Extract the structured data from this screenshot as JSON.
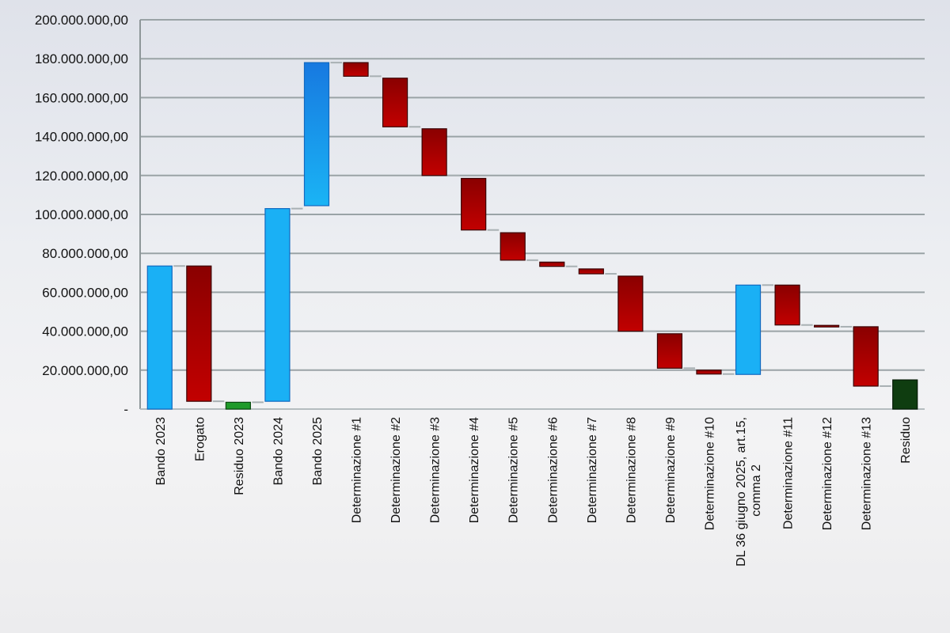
{
  "chart_data": {
    "type": "waterfall",
    "title": "",
    "xlabel": "",
    "ylabel": "",
    "ylim": [
      0,
      200000000
    ],
    "grid": true,
    "legend": "none",
    "y_ticks": [
      {
        "value": 0,
        "label": "-"
      },
      {
        "value": 20000000,
        "label": "20.000.000,00"
      },
      {
        "value": 40000000,
        "label": "40.000.000,00"
      },
      {
        "value": 60000000,
        "label": "60.000.000,00"
      },
      {
        "value": 80000000,
        "label": "80.000.000,00"
      },
      {
        "value": 100000000,
        "label": "100.000.000,00"
      },
      {
        "value": 120000000,
        "label": "120.000.000,00"
      },
      {
        "value": 140000000,
        "label": "140.000.000,00"
      },
      {
        "value": 160000000,
        "label": "160.000.000,00"
      },
      {
        "value": 180000000,
        "label": "180.000.000,00"
      },
      {
        "value": 200000000,
        "label": "200.000.000,00"
      }
    ],
    "categories": [
      "Bando 2023",
      "Erogato",
      "Residuo 2023",
      "Bando 2024",
      "Bando 2025",
      "Determinazione #1",
      "Determinazione #2",
      "Determinazione #3",
      "Determinazione #4",
      "Determinazione #5",
      "Determinazione #6",
      "Determinazione #7",
      "Determinazione #8",
      "Determinazione #9",
      "Determinazione #10",
      "DL 36 giugno 2025, art.15, comma 2",
      "Determinazione #11",
      "Determinazione #12",
      "Determinazione #13",
      "Residuo"
    ],
    "bars": [
      {
        "label": "Bando 2023",
        "kind": "increase",
        "start": 0,
        "end": 73500000
      },
      {
        "label": "Erogato",
        "kind": "decrease",
        "start": 73500000,
        "end": 4000000
      },
      {
        "label": "Residuo 2023",
        "kind": "subtotal",
        "start": 0,
        "end": 3500000
      },
      {
        "label": "Bando 2024",
        "kind": "increase",
        "start": 4000000,
        "end": 103000000
      },
      {
        "label": "Bando 2025",
        "kind": "increase",
        "start": 104500000,
        "end": 178000000
      },
      {
        "label": "Determinazione #1",
        "kind": "decrease",
        "start": 178000000,
        "end": 171000000
      },
      {
        "label": "Determinazione #2",
        "kind": "decrease",
        "start": 170000000,
        "end": 145000000
      },
      {
        "label": "Determinazione #3",
        "kind": "decrease",
        "start": 144000000,
        "end": 120000000
      },
      {
        "label": "Determinazione #4",
        "kind": "decrease",
        "start": 118500000,
        "end": 92000000
      },
      {
        "label": "Determinazione #5",
        "kind": "decrease",
        "start": 90600000,
        "end": 76500000
      },
      {
        "label": "Determinazione #6",
        "kind": "decrease",
        "start": 75500000,
        "end": 73300000
      },
      {
        "label": "Determinazione #7",
        "kind": "decrease",
        "start": 72000000,
        "end": 69500000
      },
      {
        "label": "Determinazione #8",
        "kind": "decrease",
        "start": 68300000,
        "end": 40000000
      },
      {
        "label": "Determinazione #9",
        "kind": "decrease",
        "start": 38700000,
        "end": 21000000
      },
      {
        "label": "Determinazione #10",
        "kind": "decrease",
        "start": 20000000,
        "end": 18000000
      },
      {
        "label": "DL 36 giugno 2025, art.15, comma 2",
        "kind": "increase",
        "start": 17800000,
        "end": 63700000
      },
      {
        "label": "Determinazione #11",
        "kind": "decrease",
        "start": 63700000,
        "end": 43200000
      },
      {
        "label": "Determinazione #12",
        "kind": "decrease",
        "start": 43000000,
        "end": 42300000
      },
      {
        "label": "Determinazione #13",
        "kind": "decrease",
        "start": 42300000,
        "end": 11800000
      },
      {
        "label": "Residuo",
        "kind": "total",
        "start": 0,
        "end": 15000000
      }
    ],
    "colors": {
      "increase": "#1aa8f0",
      "increase_dark": "#1779e0",
      "decrease": "#b80000",
      "decrease_dark": "#7a0000",
      "subtotal": "#1f9a2a",
      "total": "#0f3d10",
      "grid": "#9aa3a6",
      "connector": "#a8b0b3"
    }
  }
}
